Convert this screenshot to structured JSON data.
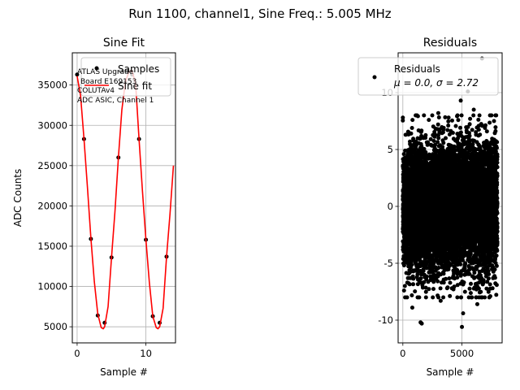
{
  "figure": {
    "suptitle": "Run 1100, channel1, Sine Freq.: 5.005 MHz"
  },
  "chart_data": [
    {
      "type": "scatter",
      "title": "Sine Fit",
      "xlabel": "Sample #",
      "ylabel": "ADC Counts",
      "xlim": [
        -0.7,
        14.3
      ],
      "ylim": [
        3000,
        39000
      ],
      "xticks": [
        0,
        10
      ],
      "yticks": [
        5000,
        10000,
        15000,
        20000,
        25000,
        30000,
        35000
      ],
      "grid": true,
      "legend_placement": "top-right",
      "series": [
        {
          "name": "Samples",
          "kind": "points",
          "color": "#000000",
          "x": [
            0,
            1,
            2,
            3,
            4,
            5,
            6,
            7,
            8,
            9,
            10,
            11,
            12,
            13
          ],
          "y": [
            36300,
            28300,
            15900,
            6400,
            5500,
            13600,
            26000,
            35300,
            36300,
            28300,
            15800,
            6300,
            5500,
            13700
          ]
        },
        {
          "name": "Sine fit",
          "kind": "line",
          "color": "#ff0000",
          "x": [
            0,
            0.5,
            1,
            1.5,
            2,
            2.5,
            3,
            3.5,
            3.8,
            4,
            4.5,
            5,
            5.5,
            6,
            6.5,
            7,
            7.5,
            7.95,
            8.5,
            9,
            9.5,
            10,
            10.5,
            11,
            11.5,
            11.75,
            12,
            12.5,
            13,
            13.5,
            14
          ],
          "y": [
            36100,
            33700,
            28300,
            22300,
            16000,
            10600,
            6600,
            4900,
            4750,
            5000,
            7500,
            13600,
            19300,
            26000,
            31900,
            35300,
            36600,
            36850,
            35200,
            28300,
            21800,
            15800,
            10500,
            6300,
            4900,
            4750,
            5000,
            7300,
            13700,
            19000,
            25000
          ]
        }
      ],
      "annotation": [
        "ATLAS Upgrade",
        "Board E169153",
        "COLUTAv4",
        "ADC ASIC, Channel 1"
      ]
    },
    {
      "type": "scatter",
      "title": "Residuals",
      "xlabel": "Sample #",
      "ylabel": "",
      "xlim": [
        -400,
        8400
      ],
      "ylim": [
        -12,
        13.5
      ],
      "xticks": [
        0,
        5000
      ],
      "yticks": [
        -10,
        -5,
        0,
        5,
        10
      ],
      "grid": true,
      "legend_placement": "top-right",
      "series": [
        {
          "name": "Residuals",
          "legend_stats": "μ = 0.0, σ = 2.72",
          "kind": "points",
          "color": "#000000",
          "x_range": [
            0,
            8000
          ],
          "n_points": 8000,
          "mean": 0.0,
          "std": 2.72,
          "outliers": [
            {
              "x": 1600,
              "y": -10.3
            },
            {
              "x": 1500,
              "y": -10.2
            },
            {
              "x": 5000,
              "y": -10.6
            },
            {
              "x": 5100,
              "y": -9.4
            },
            {
              "x": 4900,
              "y": 9.3
            },
            {
              "x": 6700,
              "y": 13.0
            },
            {
              "x": 5500,
              "y": 10.1
            },
            {
              "x": 6000,
              "y": 8.5
            },
            {
              "x": 0,
              "y": 7.8
            },
            {
              "x": 100,
              "y": -7.4
            },
            {
              "x": 6300,
              "y": -8.6
            },
            {
              "x": 3000,
              "y": 8.2
            },
            {
              "x": 3200,
              "y": -8.3
            },
            {
              "x": 7500,
              "y": 8.0
            },
            {
              "x": 800,
              "y": -8.9
            },
            {
              "x": 2200,
              "y": 7.6
            },
            {
              "x": 7400,
              "y": -7.9
            }
          ]
        }
      ]
    }
  ]
}
